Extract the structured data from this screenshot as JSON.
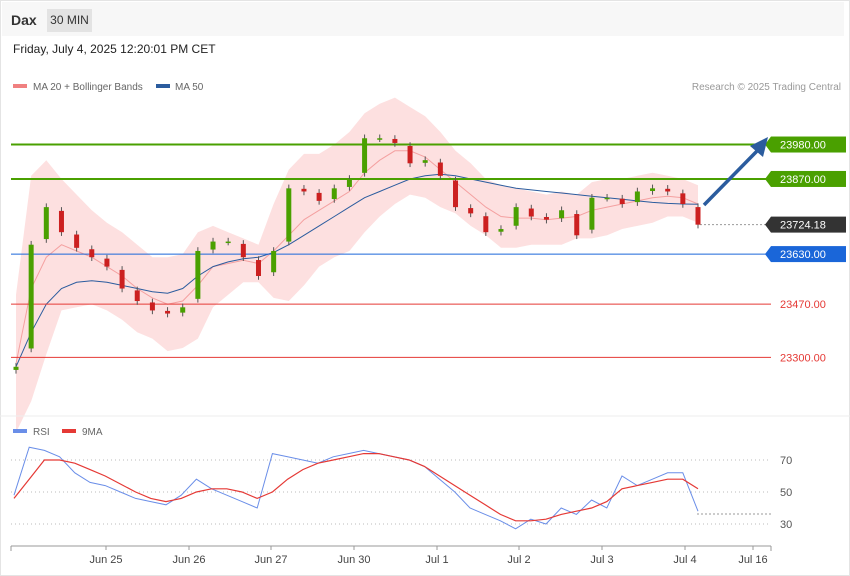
{
  "header": {
    "title": "Dax",
    "timeframe": "30 MIN"
  },
  "datetime": "Friday, July 4, 2025 12:20:01 PM CET",
  "legend": {
    "bollinger": "MA 20 + Bollinger Bands",
    "ma50": "MA 50",
    "rsi": "RSI",
    "ma9": "9MA"
  },
  "copyright": "Research © 2025 Trading Central",
  "colors": {
    "bollinger_fill": "#fde0e0",
    "bollinger_legend": "#f08080",
    "ma20": "#f4a0a0",
    "ma50": "#2b5c9e",
    "resistance": "#4aa000",
    "pivot": "#1a66d9",
    "support": "#e53935",
    "current": "#333333",
    "rsi": "#6a8ee8",
    "rsi_ma": "#e53935",
    "arrow": "#2b5c9e",
    "bull": "#4aa000",
    "bear": "#cc2020"
  },
  "chart_data": [
    {
      "type": "candlestick",
      "title": "Dax",
      "timeframe": "30 MIN",
      "ylim": [
        23100,
        24250
      ],
      "x_ticks": [
        "Jun 25",
        "Jun 26",
        "Jun 27",
        "Jun 30",
        "Jul 1",
        "Jul 2",
        "Jul 3",
        "Jul 4",
        "Jul 16"
      ],
      "levels": [
        {
          "value": 23980.0,
          "label": "23980.00",
          "kind": "resistance"
        },
        {
          "value": 23870.0,
          "label": "23870.00",
          "kind": "resistance"
        },
        {
          "value": 23724.18,
          "label": "23724.18",
          "kind": "current"
        },
        {
          "value": 23630.0,
          "label": "23630.00",
          "kind": "pivot"
        },
        {
          "value": 23470.0,
          "label": "23470.00",
          "kind": "support"
        },
        {
          "value": 23300.0,
          "label": "23300.00",
          "kind": "support"
        }
      ],
      "close": [
        23270,
        23660,
        23780,
        23700,
        23650,
        23620,
        23590,
        23520,
        23480,
        23450,
        23440,
        23460,
        23640,
        23670,
        23670,
        23620,
        23560,
        23640,
        23840,
        23830,
        23800,
        23840,
        23870,
        24000,
        24000,
        23985,
        23920,
        23930,
        23880,
        23780,
        23760,
        23700,
        23710,
        23780,
        23750,
        23740,
        23770,
        23690,
        23810,
        23810,
        23790,
        23830,
        23840,
        23830,
        23790,
        23724
      ],
      "ma20": [
        23280,
        23520,
        23620,
        23660,
        23640,
        23620,
        23590,
        23560,
        23520,
        23490,
        23470,
        23480,
        23530,
        23590,
        23600,
        23610,
        23600,
        23640,
        23690,
        23740,
        23770,
        23800,
        23830,
        23890,
        23930,
        23960,
        23960,
        23940,
        23900,
        23860,
        23820,
        23780,
        23750,
        23745,
        23745,
        23740,
        23745,
        23750,
        23770,
        23780,
        23790,
        23800,
        23810,
        23815,
        23810,
        23790
      ],
      "ma50": [
        23270,
        23380,
        23470,
        23520,
        23540,
        23545,
        23540,
        23530,
        23520,
        23510,
        23505,
        23520,
        23560,
        23590,
        23605,
        23615,
        23620,
        23635,
        23660,
        23690,
        23720,
        23750,
        23780,
        23810,
        23830,
        23850,
        23870,
        23880,
        23885,
        23880,
        23870,
        23860,
        23850,
        23840,
        23835,
        23830,
        23825,
        23820,
        23815,
        23810,
        23805,
        23800,
        23795,
        23792,
        23790,
        23789
      ],
      "bb_upper": [
        23500,
        23880,
        23930,
        23870,
        23820,
        23770,
        23730,
        23700,
        23660,
        23620,
        23620,
        23630,
        23700,
        23720,
        23700,
        23680,
        23660,
        23790,
        23900,
        23950,
        23950,
        23980,
        24020,
        24080,
        24110,
        24130,
        24100,
        24070,
        24020,
        23960,
        23920,
        23870,
        23850,
        23840,
        23830,
        23820,
        23830,
        23820,
        23860,
        23870,
        23870,
        23880,
        23890,
        23880,
        23870,
        23850
      ],
      "bb_lower": [
        23060,
        23160,
        23310,
        23450,
        23460,
        23470,
        23450,
        23420,
        23380,
        23360,
        23320,
        23330,
        23360,
        23460,
        23500,
        23540,
        23540,
        23490,
        23480,
        23530,
        23590,
        23620,
        23640,
        23700,
        23750,
        23790,
        23820,
        23810,
        23780,
        23760,
        23720,
        23690,
        23650,
        23650,
        23660,
        23660,
        23660,
        23680,
        23680,
        23690,
        23710,
        23720,
        23730,
        23750,
        23750,
        23730
      ]
    },
    {
      "type": "line",
      "title": "RSI",
      "ylim": [
        20,
        80
      ],
      "y_ticks": [
        70,
        50,
        30
      ],
      "series": [
        {
          "name": "RSI",
          "values": [
            48,
            78,
            76,
            72,
            62,
            56,
            54,
            50,
            46,
            44,
            42,
            48,
            58,
            52,
            48,
            44,
            40,
            74,
            72,
            70,
            68,
            72,
            74,
            76,
            74,
            72,
            70,
            66,
            58,
            50,
            40,
            36,
            32,
            27,
            33,
            30,
            40,
            36,
            45,
            40,
            60,
            54,
            58,
            62,
            62,
            38
          ]
        },
        {
          "name": "9MA",
          "values": [
            46,
            58,
            70,
            70,
            68,
            64,
            60,
            55,
            50,
            46,
            44,
            46,
            50,
            52,
            52,
            50,
            46,
            50,
            58,
            64,
            68,
            70,
            72,
            74,
            74,
            72,
            70,
            66,
            60,
            54,
            48,
            42,
            36,
            32,
            32,
            33,
            36,
            38,
            40,
            44,
            52,
            54,
            56,
            58,
            58,
            52
          ]
        }
      ]
    }
  ]
}
